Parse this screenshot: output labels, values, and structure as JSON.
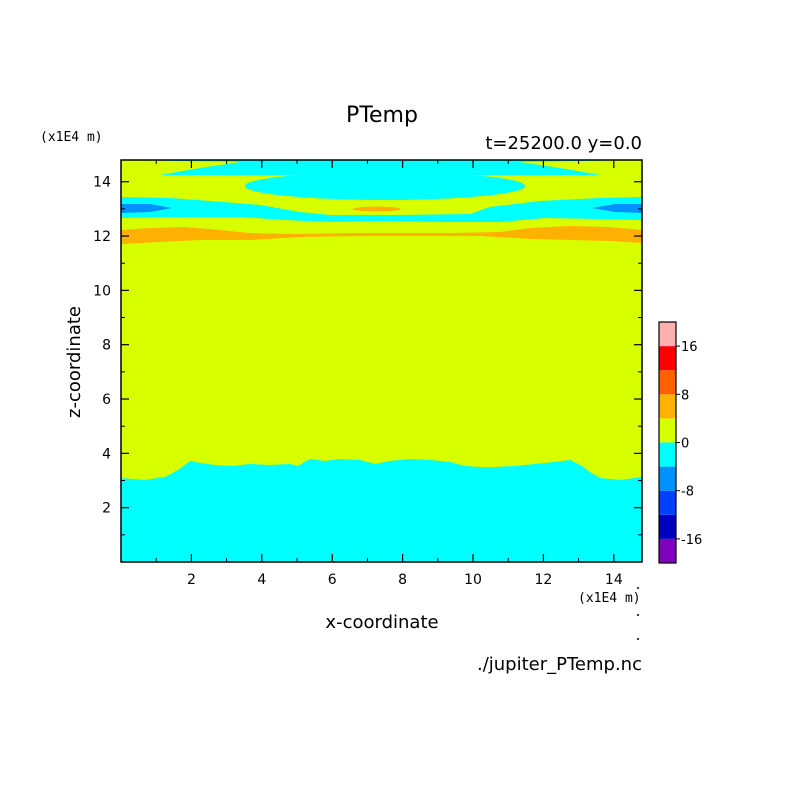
{
  "chart_data": {
    "type": "contour",
    "title": "PTemp",
    "subtitle": "t=25200.0 y=0.0",
    "xlabel": "x-coordinate",
    "ylabel": "z-coordinate",
    "x_unit": "(x1E4 m)",
    "y_unit": "(x1E4 m)",
    "source": "./jupiter_PTemp.nc",
    "xlim": [
      0,
      14.8
    ],
    "ylim": [
      0,
      14.8
    ],
    "x_ticks": [
      2,
      4,
      6,
      8,
      10,
      12,
      14
    ],
    "y_ticks": [
      2,
      4,
      6,
      8,
      10,
      12,
      14
    ],
    "colorbar": {
      "levels": [
        -20,
        -16,
        -12,
        -8,
        -4,
        0,
        4,
        8,
        12,
        16,
        20
      ],
      "tick_labels": [
        16,
        8,
        0,
        -8,
        -16
      ],
      "colors": [
        "#8000c0",
        "#0000c0",
        "#0040ff",
        "#0090ff",
        "#00ffff",
        "#d8ff00",
        "#ffb000",
        "#ff6000",
        "#ff0000",
        "#ffb0b0"
      ]
    },
    "regions": [
      {
        "range": "0 to 4",
        "color": "#d8ff00",
        "description": "background, most of domain"
      },
      {
        "range": "-4 to 0",
        "color": "#00ffff",
        "description": "lower layer z < ~3.5 and upper bands near z 12.8-14.8"
      },
      {
        "range": "4 to 8",
        "color": "#ffb000",
        "description": "thin band near z ~12.2"
      },
      {
        "range": "-8 to -4",
        "color": "#0090ff",
        "description": "small patches near z ~13 at domain edges"
      }
    ]
  }
}
